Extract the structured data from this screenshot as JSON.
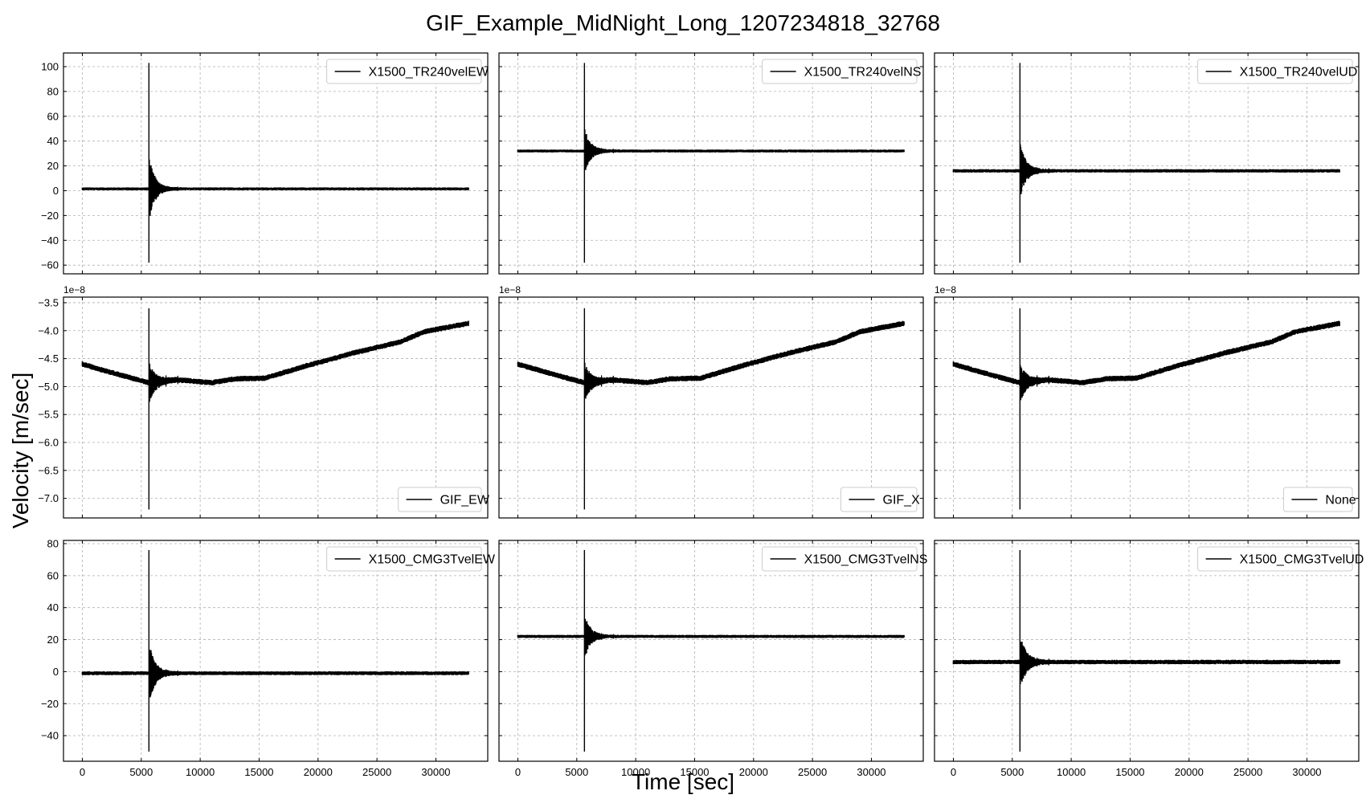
{
  "figure": {
    "title": "GIF_Example_MidNight_Long_1207234818_32768",
    "ylabel": "Velocity [m/sec]",
    "xlabel": "Time [sec]"
  },
  "chart_data": [
    {
      "type": "line",
      "name": "panel-tr240-ew",
      "legend": "X1500_TR240velEW",
      "legend_loc": "upper right",
      "xlim": [
        -1600,
        34400
      ],
      "ylim": [
        -67,
        111
      ],
      "xticks": [
        0,
        5000,
        10000,
        15000,
        20000,
        25000,
        30000
      ],
      "show_xticklabels": false,
      "yticks": [
        -60,
        -40,
        -20,
        0,
        20,
        40,
        60,
        80,
        100
      ],
      "show_yticklabels": true,
      "offset_text": "",
      "grid": true,
      "trace": {
        "kind": "flat_burst",
        "t_start": 0,
        "t_end": 32768,
        "baseline": 1.5,
        "event_t": 5650,
        "peak_pos": 103,
        "peak_neg": -58,
        "band": 1.2
      }
    },
    {
      "type": "line",
      "name": "panel-tr240-ns",
      "legend": "X1500_TR240velNS",
      "legend_loc": "upper right",
      "xlim": [
        -1600,
        34400
      ],
      "ylim": [
        -67,
        111
      ],
      "xticks": [
        0,
        5000,
        10000,
        15000,
        20000,
        25000,
        30000
      ],
      "show_xticklabels": false,
      "yticks": [
        -60,
        -40,
        -20,
        0,
        20,
        40,
        60,
        80,
        100
      ],
      "show_yticklabels": false,
      "offset_text": "",
      "grid": true,
      "trace": {
        "kind": "flat_burst",
        "t_start": 0,
        "t_end": 32768,
        "baseline": 32,
        "event_t": 5650,
        "peak_pos": 103,
        "peak_neg": -58,
        "band": 1.2
      }
    },
    {
      "type": "line",
      "name": "panel-tr240-ud",
      "legend": "X1500_TR240velUD",
      "legend_loc": "upper right",
      "xlim": [
        -1600,
        34400
      ],
      "ylim": [
        -67,
        111
      ],
      "xticks": [
        0,
        5000,
        10000,
        15000,
        20000,
        25000,
        30000
      ],
      "show_xticklabels": false,
      "yticks": [
        -60,
        -40,
        -20,
        0,
        20,
        40,
        60,
        80,
        100
      ],
      "show_yticklabels": false,
      "offset_text": "",
      "grid": true,
      "trace": {
        "kind": "flat_burst",
        "t_start": 0,
        "t_end": 32768,
        "baseline": 16,
        "event_t": 5650,
        "peak_pos": 103,
        "peak_neg": -58,
        "band": 1.4
      }
    },
    {
      "type": "line",
      "name": "panel-gif-ew",
      "legend": "GIF_EW",
      "legend_loc": "lower right",
      "xlim": [
        -1600,
        34400
      ],
      "ylim": [
        -7.35,
        -3.4
      ],
      "xticks": [
        0,
        5000,
        10000,
        15000,
        20000,
        25000,
        30000
      ],
      "show_xticklabels": false,
      "yticks": [
        -7.0,
        -6.5,
        -6.0,
        -5.5,
        -5.0,
        -4.5,
        -4.0,
        -3.5
      ],
      "ytick_labels": [
        "−7.0",
        "−6.5",
        "−6.0",
        "−5.5",
        "−5.0",
        "−4.5",
        "−4.0",
        "−3.5"
      ],
      "show_yticklabels": true,
      "offset_text": "1e−8",
      "grid": true,
      "trace": {
        "kind": "drift_burst",
        "event_t": 5650,
        "peak_pos": -3.6,
        "peak_neg": -7.2,
        "band": 0.05,
        "drift": [
          [
            0,
            -4.6
          ],
          [
            2500,
            -4.75
          ],
          [
            5600,
            -4.93
          ],
          [
            8000,
            -4.88
          ],
          [
            11000,
            -4.93
          ],
          [
            13000,
            -4.86
          ],
          [
            15500,
            -4.85
          ],
          [
            19000,
            -4.63
          ],
          [
            23000,
            -4.4
          ],
          [
            27000,
            -4.2
          ],
          [
            29000,
            -4.02
          ],
          [
            32768,
            -3.87
          ]
        ]
      }
    },
    {
      "type": "line",
      "name": "panel-gif-x",
      "legend": "GIF_X",
      "legend_loc": "lower right",
      "xlim": [
        -1600,
        34400
      ],
      "ylim": [
        -7.35,
        -3.4
      ],
      "xticks": [
        0,
        5000,
        10000,
        15000,
        20000,
        25000,
        30000
      ],
      "show_xticklabels": false,
      "yticks": [
        -7.0,
        -6.5,
        -6.0,
        -5.5,
        -5.0,
        -4.5,
        -4.0,
        -3.5
      ],
      "show_yticklabels": false,
      "offset_text": "1e−8",
      "grid": true,
      "trace": {
        "kind": "drift_burst",
        "event_t": 5650,
        "peak_pos": -3.6,
        "peak_neg": -7.2,
        "band": 0.05,
        "drift": [
          [
            0,
            -4.6
          ],
          [
            2500,
            -4.75
          ],
          [
            5600,
            -4.93
          ],
          [
            8000,
            -4.88
          ],
          [
            11000,
            -4.93
          ],
          [
            13000,
            -4.86
          ],
          [
            15500,
            -4.85
          ],
          [
            19000,
            -4.63
          ],
          [
            23000,
            -4.4
          ],
          [
            27000,
            -4.2
          ],
          [
            29000,
            -4.02
          ],
          [
            32768,
            -3.87
          ]
        ]
      }
    },
    {
      "type": "line",
      "name": "panel-gif-none",
      "legend": "None",
      "legend_loc": "lower right",
      "xlim": [
        -1600,
        34400
      ],
      "ylim": [
        -7.35,
        -3.4
      ],
      "xticks": [
        0,
        5000,
        10000,
        15000,
        20000,
        25000,
        30000
      ],
      "show_xticklabels": false,
      "yticks": [
        -7.0,
        -6.5,
        -6.0,
        -5.5,
        -5.0,
        -4.5,
        -4.0,
        -3.5
      ],
      "show_yticklabels": false,
      "offset_text": "1e−8",
      "grid": true,
      "trace": {
        "kind": "drift_burst",
        "event_t": 5650,
        "peak_pos": -3.6,
        "peak_neg": -7.2,
        "band": 0.05,
        "drift": [
          [
            0,
            -4.6
          ],
          [
            2500,
            -4.75
          ],
          [
            5600,
            -4.93
          ],
          [
            8000,
            -4.88
          ],
          [
            11000,
            -4.93
          ],
          [
            13000,
            -4.86
          ],
          [
            15500,
            -4.85
          ],
          [
            19000,
            -4.63
          ],
          [
            23000,
            -4.4
          ],
          [
            27000,
            -4.2
          ],
          [
            29000,
            -4.02
          ],
          [
            32768,
            -3.87
          ]
        ]
      }
    },
    {
      "type": "line",
      "name": "panel-cmg3t-ew",
      "legend": "X1500_CMG3TvelEW",
      "legend_loc": "upper right",
      "xlim": [
        -1600,
        34400
      ],
      "ylim": [
        -56,
        82
      ],
      "xticks": [
        0,
        5000,
        10000,
        15000,
        20000,
        25000,
        30000
      ],
      "show_xticklabels": true,
      "yticks": [
        -40,
        -20,
        0,
        20,
        40,
        60,
        80
      ],
      "show_yticklabels": true,
      "offset_text": "",
      "grid": true,
      "trace": {
        "kind": "flat_burst",
        "t_start": 0,
        "t_end": 32768,
        "baseline": -1,
        "event_t": 5650,
        "peak_pos": 76,
        "peak_neg": -50,
        "band": 1.2
      }
    },
    {
      "type": "line",
      "name": "panel-cmg3t-ns",
      "legend": "X1500_CMG3TvelNS",
      "legend_loc": "upper right",
      "xlim": [
        -1600,
        34400
      ],
      "ylim": [
        -56,
        82
      ],
      "xticks": [
        0,
        5000,
        10000,
        15000,
        20000,
        25000,
        30000
      ],
      "show_xticklabels": true,
      "yticks": [
        -40,
        -20,
        0,
        20,
        40,
        60,
        80
      ],
      "show_yticklabels": false,
      "offset_text": "",
      "grid": true,
      "trace": {
        "kind": "flat_burst",
        "t_start": 0,
        "t_end": 32768,
        "baseline": 22,
        "event_t": 5650,
        "peak_pos": 76,
        "peak_neg": -50,
        "band": 1.0
      }
    },
    {
      "type": "line",
      "name": "panel-cmg3t-ud",
      "legend": "X1500_CMG3TvelUD",
      "legend_loc": "upper right",
      "xlim": [
        -1600,
        34400
      ],
      "ylim": [
        -56,
        82
      ],
      "xticks": [
        0,
        5000,
        10000,
        15000,
        20000,
        25000,
        30000
      ],
      "show_xticklabels": true,
      "yticks": [
        -40,
        -20,
        0,
        20,
        40,
        60,
        80
      ],
      "show_yticklabels": false,
      "offset_text": "",
      "grid": true,
      "trace": {
        "kind": "flat_burst",
        "t_start": 0,
        "t_end": 32768,
        "baseline": 6,
        "event_t": 5650,
        "peak_pos": 76,
        "peak_neg": -50,
        "band": 1.4
      }
    }
  ]
}
